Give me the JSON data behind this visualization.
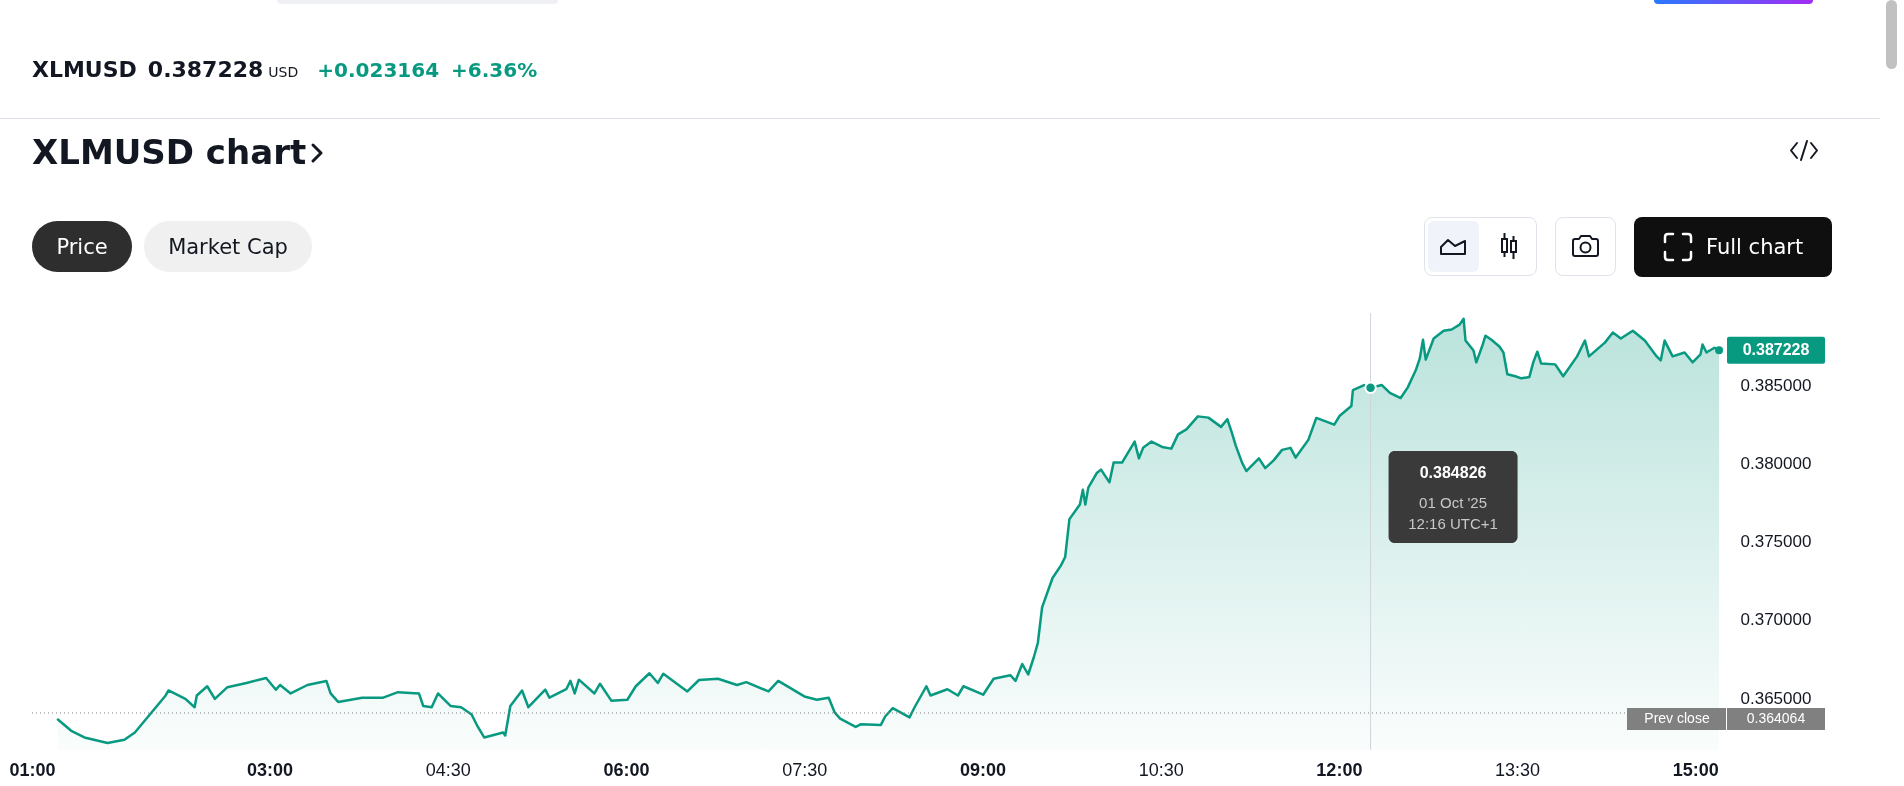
{
  "chart_data": {
    "type": "area",
    "title": "XLMUSD chart",
    "annotations": [
      "XLMUSD",
      "0.387228",
      "USD",
      "+0.023164",
      "+6.36%",
      "Price",
      "Market Cap",
      "Full chart",
      "0.384826\n01 Oct '25\n12:16 UTC+1",
      "0.364064"
    ],
    "x": [
      1.218,
      1.335,
      1.441,
      1.636,
      1.778,
      1.866,
      2.125,
      2.149,
      2.291,
      2.369,
      2.387,
      2.475,
      2.539,
      2.645,
      2.805,
      2.971,
      3.053,
      3.088,
      3.177,
      3.318,
      3.478,
      3.513,
      3.577,
      3.779,
      3.956,
      4.08,
      4.257,
      4.293,
      4.364,
      4.417,
      4.523,
      4.612,
      4.7,
      4.753,
      4.806,
      4.966,
      4.983,
      5.026,
      5.125,
      5.178,
      5.32,
      5.355,
      5.497,
      5.532,
      5.568,
      5.603,
      5.734,
      5.781,
      5.876,
      6.011,
      6.082,
      6.197,
      6.268,
      6.314,
      6.516,
      6.614,
      6.774,
      6.934,
      7.012,
      7.199,
      7.281,
      7.501,
      7.607,
      7.706,
      7.756,
      7.802,
      7.933,
      7.979,
      8.145,
      8.181,
      8.245,
      8.386,
      8.429,
      8.528,
      8.563,
      8.705,
      8.794,
      8.84,
      9.006,
      9.094,
      9.236,
      9.278,
      9.335,
      9.385,
      9.431,
      9.466,
      9.502,
      9.59,
      9.661,
      9.696,
      9.732,
      9.82,
      9.845,
      9.866,
      9.891,
      9.962,
      9.998,
      10.069,
      10.104,
      10.175,
      10.281,
      10.317,
      10.352,
      10.423,
      10.512,
      10.59,
      10.646,
      10.717,
      10.813,
      10.902,
      11.008,
      11.061,
      11.097,
      11.132,
      11.185,
      11.221,
      11.327,
      11.38,
      11.451,
      11.522,
      11.593,
      11.636,
      11.743,
      11.81,
      11.961,
      12.005,
      12.105,
      12.118,
      12.212,
      12.2667,
      12.362,
      12.429,
      12.52,
      12.58,
      12.647,
      12.681,
      12.708,
      12.731,
      12.798,
      12.882,
      12.949,
      13.016,
      13.05,
      13.066,
      13.133,
      13.157,
      13.211,
      13.234,
      13.284,
      13.351,
      13.385,
      13.418,
      13.485,
      13.536,
      13.603,
      13.636,
      13.67,
      13.703,
      13.821,
      13.888,
      14.005,
      14.071,
      14.105,
      14.239,
      14.306,
      14.373,
      14.474,
      14.575,
      14.675,
      14.709,
      14.742,
      14.809,
      14.91,
      14.977,
      15.044,
      15.061,
      15.094,
      15.161,
      15.2
    ],
    "values": [
      0.36365,
      0.3629,
      0.3625,
      0.36215,
      0.36236,
      0.36282,
      0.36518,
      0.3655,
      0.36496,
      0.36443,
      0.36518,
      0.36577,
      0.36496,
      0.36571,
      0.36598,
      0.3663,
      0.36555,
      0.36585,
      0.36531,
      0.36585,
      0.36611,
      0.36531,
      0.36477,
      0.36504,
      0.36504,
      0.36539,
      0.36531,
      0.36451,
      0.36443,
      0.36531,
      0.36451,
      0.36443,
      0.36397,
      0.36317,
      0.3625,
      0.36282,
      0.36263,
      0.36451,
      0.3655,
      0.36443,
      0.36555,
      0.36504,
      0.36558,
      0.36611,
      0.36531,
      0.36619,
      0.36531,
      0.36593,
      0.36485,
      0.36491,
      0.36577,
      0.3666,
      0.36598,
      0.36657,
      0.36544,
      0.36617,
      0.36625,
      0.36585,
      0.36603,
      0.36544,
      0.36611,
      0.36512,
      0.36491,
      0.36504,
      0.3641,
      0.3637,
      0.36317,
      0.36335,
      0.3633,
      0.36384,
      0.36437,
      0.36378,
      0.36443,
      0.36577,
      0.36518,
      0.36558,
      0.36518,
      0.36577,
      0.36523,
      0.36625,
      0.36647,
      0.36611,
      0.36719,
      0.36652,
      0.36759,
      0.36853,
      0.37081,
      0.37268,
      0.37349,
      0.37402,
      0.37644,
      0.37737,
      0.37831,
      0.37737,
      0.37845,
      0.37938,
      0.3796,
      0.37879,
      0.38005,
      0.38005,
      0.38139,
      0.38032,
      0.38099,
      0.38139,
      0.38105,
      0.38094,
      0.38185,
      0.38217,
      0.383,
      0.38292,
      0.38233,
      0.38282,
      0.38201,
      0.38113,
      0.38005,
      0.37951,
      0.38032,
      0.3797,
      0.38019,
      0.38086,
      0.38099,
      0.38037,
      0.3815,
      0.3829,
      0.38247,
      0.38302,
      0.38366,
      0.38467,
      0.385,
      0.38483,
      0.385,
      0.3845,
      0.38417,
      0.38485,
      0.38594,
      0.3867,
      0.38789,
      0.38662,
      0.38797,
      0.38847,
      0.38855,
      0.38886,
      0.38923,
      0.38784,
      0.38721,
      0.38645,
      0.38759,
      0.38815,
      0.38789,
      0.38746,
      0.38708,
      0.38569,
      0.38556,
      0.38543,
      0.38551,
      0.38645,
      0.38713,
      0.38637,
      0.38632,
      0.38556,
      0.38683,
      0.38784,
      0.38683,
      0.38771,
      0.38835,
      0.38797,
      0.38847,
      0.38784,
      0.38683,
      0.38657,
      0.38784,
      0.38683,
      0.38708,
      0.38645,
      0.38696,
      0.38759,
      0.38708,
      0.38738,
      0.387228
    ],
    "value_labels": [
      null,
      null,
      null,
      null,
      null,
      null,
      null,
      null,
      null,
      null,
      null,
      null,
      null,
      null,
      null,
      null,
      null,
      null,
      null,
      null,
      null,
      null,
      null,
      null,
      null,
      null,
      null,
      null,
      null,
      null,
      null,
      null,
      null,
      null,
      null,
      null,
      null,
      null,
      null,
      null,
      null,
      null,
      null,
      null,
      null,
      null,
      null,
      null,
      null,
      null,
      null,
      null,
      null,
      null,
      null,
      null,
      null,
      null,
      null,
      null,
      null,
      null,
      null,
      null,
      null,
      null,
      null,
      null,
      null,
      null,
      null,
      null,
      null,
      null,
      null,
      null,
      null,
      null,
      null,
      null,
      null,
      null,
      null,
      null,
      null,
      null,
      null,
      null,
      null,
      null,
      null,
      null,
      null,
      null,
      null,
      null,
      null,
      null,
      null,
      null,
      null,
      null,
      null,
      null,
      null,
      null,
      null,
      null,
      null,
      null,
      null,
      null,
      null,
      null,
      null,
      null,
      null,
      null,
      null,
      null,
      null,
      null,
      null,
      null,
      null,
      null,
      null,
      null,
      null,
      null,
      null,
      null,
      null,
      null,
      null,
      null,
      null,
      null,
      null,
      null,
      null,
      null,
      null,
      null,
      null,
      null,
      null,
      null,
      null,
      null,
      null,
      null,
      null,
      null,
      null,
      null,
      null,
      null,
      null,
      null,
      null,
      null,
      null,
      null,
      null,
      null,
      null,
      null,
      null,
      null,
      null,
      null,
      null,
      null,
      null,
      null,
      null,
      null,
      "0.387228"
    ],
    "color": "#089981",
    "xlim": [
      1,
      15.25
    ],
    "xticks": [
      {
        "value": 1,
        "label": "01:00"
      },
      {
        "value": 3,
        "label": "03:00"
      },
      {
        "value": 4.5,
        "label": "04:30"
      },
      {
        "value": 6,
        "label": "06:00"
      },
      {
        "value": 7.5,
        "label": "07:30"
      },
      {
        "value": 9,
        "label": "09:00"
      },
      {
        "value": 10.5,
        "label": "10:30"
      },
      {
        "value": 12,
        "label": "12:00"
      },
      {
        "value": 13.5,
        "label": "13:30"
      },
      {
        "value": 15,
        "label": "15:00"
      }
    ],
    "ylim": [
      0.3617,
      0.3896
    ],
    "yticks": [
      {
        "value": 0.365,
        "label": "0.365000"
      },
      {
        "value": 0.37,
        "label": "0.370000"
      },
      {
        "value": 0.375,
        "label": "0.375000"
      },
      {
        "value": 0.38,
        "label": "0.380000"
      },
      {
        "value": 0.385,
        "label": "0.385000"
      }
    ],
    "ref_lines": [
      {
        "axis": "y",
        "value": 0.364064,
        "label": "Prev close",
        "color": "#808080",
        "line_style": "dotted"
      },
      {
        "axis": "x",
        "value": 12.2667,
        "color": "#d1d4dc"
      }
    ]
  }
}
